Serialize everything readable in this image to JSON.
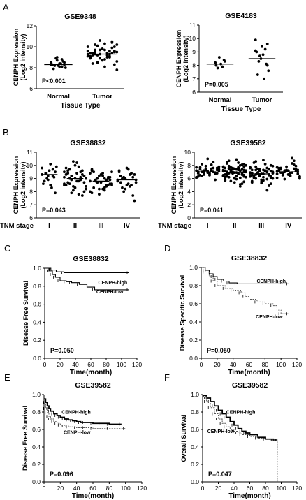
{
  "chart_data": [
    {
      "letter": "A",
      "type": "scatter",
      "title": "GSE9348",
      "ylabel": [
        "CENPH Expression",
        "(Log2 intensity)"
      ],
      "xlabel": "Tissue Type",
      "categories": [
        "Normal",
        "Tumor"
      ],
      "ylim": [
        6,
        12
      ],
      "yticks": [
        6,
        8,
        10,
        12
      ],
      "means": [
        8.3,
        9.3
      ],
      "values": [
        [
          8.3,
          8.5,
          8.1,
          8.4,
          8.7,
          8.2,
          8.3,
          8.0,
          8.6,
          8.4,
          8.2,
          8.9,
          7.9,
          8.5,
          8.3,
          8.8,
          8.1,
          9.0
        ],
        [
          9.3,
          9.5,
          9.1,
          9.7,
          8.9,
          10.2,
          9.4,
          8.6,
          10.4,
          9.0,
          9.8,
          9.2,
          8.4,
          10.0,
          9.6,
          9.3,
          8.8,
          10.6,
          9.5,
          9.1,
          7.8,
          9.9,
          9.4,
          8.7,
          10.1,
          9.2,
          9.6,
          8.3,
          9.0,
          10.3,
          9.7,
          9.3,
          8.9,
          9.5,
          10.5,
          9.2,
          9.8,
          8.5,
          9.4,
          9.1,
          10.0,
          9.6,
          8.1,
          9.3,
          9.7,
          9.0,
          10.2,
          9.4
        ]
      ],
      "annotation": "P<0.001"
    },
    {
      "letter": "",
      "type": "scatter",
      "title": "GSE4183",
      "ylabel": [
        "CENPH Expression",
        "(Log2 intensity)"
      ],
      "xlabel": "Tissue Type",
      "categories": [
        "Normal",
        "Tumor"
      ],
      "ylim": [
        6,
        11
      ],
      "yticks": [
        6,
        7,
        8,
        9,
        10,
        11
      ],
      "means": [
        8.1,
        8.5
      ],
      "values": [
        [
          8.2,
          8.4,
          7.9,
          8.1,
          8.6,
          7.8,
          8.0,
          8.3
        ],
        [
          9.9,
          9.6,
          9.2,
          8.8,
          8.5,
          8.3,
          9.0,
          7.6,
          8.1,
          7.0,
          9.4,
          8.7,
          7.3,
          9.1,
          8.0
        ]
      ],
      "annotation": "P=0.005"
    },
    {
      "letter": "B",
      "type": "scatter",
      "title": "GSE38832",
      "ylabel": [
        "CENPH Expression",
        "(Log2 intensity)"
      ],
      "xlabel": "TNM stage",
      "categories": [
        "I",
        "II",
        "III",
        "IV"
      ],
      "ylim": [
        6,
        11
      ],
      "yticks": [
        6,
        7,
        8,
        9,
        10,
        11
      ],
      "means": [
        9.3,
        9.0,
        8.8,
        8.9
      ],
      "values": [
        [
          9.8,
          9.5,
          9.2,
          10.1,
          8.9,
          9.4,
          8.6,
          9.9,
          9.1,
          8.3,
          9.6,
          9.0,
          8.8,
          9.3,
          7.9,
          9.7,
          8.5,
          9.2
        ],
        [
          9.1,
          8.7,
          9.5,
          10.2,
          8.4,
          9.0,
          9.8,
          8.2,
          9.3,
          8.8,
          10.0,
          7.9,
          9.6,
          8.6,
          9.2,
          8.9,
          9.4,
          8.1,
          9.7,
          8.5,
          9.0,
          7.7,
          9.9,
          8.3,
          9.2,
          8.7,
          9.5,
          8.0,
          9.1,
          8.8,
          10.3,
          8.6,
          9.3,
          8.4,
          9.6,
          7.8,
          9.0,
          8.9,
          9.4,
          8.5
        ],
        [
          8.8,
          9.1,
          8.5,
          9.4,
          8.2,
          8.9,
          9.7,
          8.6,
          9.0,
          8.3,
          9.3,
          8.7,
          9.5,
          8.0,
          8.9,
          8.4,
          9.2,
          7.8,
          8.8,
          9.6,
          8.5,
          9.1,
          8.1,
          8.7,
          9.0,
          8.3,
          9.4,
          8.6,
          8.9,
          8.2,
          9.2,
          8.8,
          7.9,
          9.5,
          8.5,
          9.0
        ],
        [
          8.9,
          9.3,
          8.5,
          9.7,
          8.2,
          9.0,
          9.5,
          8.7,
          9.1,
          8.4,
          9.8,
          8.0,
          9.2,
          8.8,
          7.3,
          9.4,
          8.6,
          9.0,
          8.3,
          9.6,
          8.9,
          7.7,
          9.3,
          8.5,
          9.1,
          8.7
        ]
      ],
      "annotation": "P=0.043"
    },
    {
      "letter": "",
      "type": "scatter",
      "title": "GSE39582",
      "ylabel": [
        "CENPH Expression",
        "(Log2 intensity)"
      ],
      "xlabel": "TNM stage",
      "categories": [
        "I",
        "II",
        "III",
        "IV"
      ],
      "ylim": [
        0,
        10
      ],
      "yticks": [
        0,
        2,
        4,
        6,
        8,
        10
      ],
      "means": [
        7.0,
        6.9,
        6.7,
        7.0
      ],
      "values": [
        [
          7.2,
          6.8,
          7.6,
          6.5,
          7.9,
          7.0,
          6.3,
          7.4,
          6.9,
          8.1,
          7.1,
          6.6,
          7.7,
          6.2,
          7.3,
          8.5,
          6.8,
          7.5,
          6.4,
          7.0,
          7.8,
          6.7,
          7.2,
          9.0,
          6.9,
          7.4,
          6.1,
          7.6,
          7.0,
          6.6,
          7.3,
          8.2,
          6.8,
          7.1,
          5.8,
          7.5,
          6.9,
          7.2,
          6.5,
          7.7
        ],
        [
          7.3,
          6.5,
          8.0,
          5.9,
          7.0,
          6.8,
          7.6,
          6.2,
          7.4,
          8.4,
          6.0,
          7.1,
          6.7,
          7.8,
          5.5,
          7.2,
          6.4,
          7.5,
          8.7,
          6.6,
          7.0,
          5.2,
          7.3,
          6.9,
          7.7,
          6.3,
          7.1,
          8.2,
          6.1,
          7.4,
          6.8,
          7.9,
          5.7,
          7.2,
          6.6,
          7.5,
          6.0,
          7.0,
          8.5,
          6.4,
          7.3,
          4.8,
          6.9,
          7.6,
          6.2,
          7.1,
          8.0,
          6.7,
          7.4,
          5.4,
          7.0,
          6.5,
          7.8,
          6.3,
          7.2,
          8.9,
          6.8,
          7.5,
          5.9,
          7.1,
          6.6,
          7.7,
          6.1,
          7.3,
          8.3,
          6.4,
          7.0,
          5.1,
          7.4,
          6.9,
          7.6,
          6.2,
          7.2,
          8.1,
          6.7,
          7.5,
          5.6,
          7.0,
          6.5,
          7.8
        ],
        [
          6.9,
          6.3,
          7.6,
          5.7,
          7.1,
          6.6,
          7.3,
          6.0,
          7.4,
          8.2,
          5.5,
          6.8,
          6.4,
          7.7,
          5.2,
          7.0,
          6.2,
          7.2,
          8.6,
          6.5,
          6.9,
          4.9,
          7.1,
          6.7,
          7.5,
          6.1,
          6.8,
          8.0,
          5.9,
          7.3,
          6.4,
          7.8,
          5.4,
          7.0,
          6.6,
          7.2,
          5.8,
          6.9,
          8.4,
          6.3,
          7.1,
          4.2,
          6.7,
          7.4,
          6.0,
          6.8,
          7.9,
          6.5,
          7.2,
          5.3,
          6.9,
          6.2,
          7.6,
          6.1,
          7.0,
          8.8,
          6.6,
          7.3,
          5.6,
          6.8
        ],
        [
          7.1,
          6.7,
          7.5,
          6.4,
          7.8,
          6.9,
          7.2,
          6.2,
          7.4,
          8.3,
          6.6,
          7.0,
          7.6,
          6.1,
          7.3,
          8.7,
          6.8,
          7.1,
          6.5,
          7.5,
          6.3,
          7.9,
          6.9,
          7.2,
          5.9,
          7.4,
          6.7,
          7.0,
          8.1,
          6.4,
          7.3,
          6.8,
          7.6,
          6.0,
          7.1,
          9.1,
          6.6,
          7.2,
          6.9,
          7.7
        ]
      ],
      "annotation": "P=0.041"
    },
    {
      "letter": "C",
      "type": "line",
      "title": "GSE38832",
      "ylabel": "Disease Free Survival",
      "xlabel": "Time(month)",
      "xlim": [
        0,
        120
      ],
      "ylim": [
        0,
        1.0
      ],
      "xticks": [
        0,
        20,
        40,
        60,
        80,
        100,
        120
      ],
      "yticks": [
        0.0,
        0.2,
        0.4,
        0.6,
        0.8,
        1.0
      ],
      "series": [
        {
          "name": "CENPH-high",
          "style": "solid",
          "x": [
            0,
            8,
            15,
            25,
            110
          ],
          "y": [
            1.0,
            0.98,
            0.96,
            0.95,
            0.95
          ]
        },
        {
          "name": "CENPH-low",
          "style": "solid",
          "x": [
            0,
            6,
            10,
            14,
            20,
            28,
            35,
            45,
            55,
            65,
            110
          ],
          "y": [
            1.0,
            0.97,
            0.93,
            0.9,
            0.86,
            0.85,
            0.84,
            0.82,
            0.79,
            0.76,
            0.76
          ]
        }
      ],
      "annotation": "P=0.050"
    },
    {
      "letter": "D",
      "type": "line",
      "title": "GSE38832",
      "ylabel": "Disease Specific Survival",
      "xlabel": "Time(month)",
      "xlim": [
        0,
        120
      ],
      "ylim": [
        0,
        1.0
      ],
      "xticks": [
        0,
        20,
        40,
        60,
        80,
        100,
        120
      ],
      "yticks": [
        0.0,
        0.2,
        0.4,
        0.6,
        0.8,
        1.0
      ],
      "series": [
        {
          "name": "CENPH-high",
          "style": "solid",
          "x": [
            0,
            5,
            10,
            15,
            20,
            28,
            35,
            45,
            110
          ],
          "y": [
            1.0,
            0.97,
            0.93,
            0.9,
            0.87,
            0.85,
            0.83,
            0.82,
            0.82
          ]
        },
        {
          "name": "CENPH-low",
          "style": "dashed",
          "x": [
            0,
            5,
            10,
            15,
            20,
            30,
            40,
            50,
            55,
            60,
            70,
            80,
            90,
            95,
            100,
            110
          ],
          "y": [
            1.0,
            0.95,
            0.9,
            0.85,
            0.8,
            0.77,
            0.75,
            0.72,
            0.68,
            0.65,
            0.62,
            0.6,
            0.58,
            0.53,
            0.49,
            0.49
          ]
        }
      ],
      "annotation": "P=0.050"
    },
    {
      "letter": "E",
      "type": "line",
      "title": "GSE39582",
      "ylabel": "Disease Free Survival",
      "xlabel": "Time(month)",
      "xlim": [
        0,
        120
      ],
      "ylim": [
        0,
        1.0
      ],
      "xticks": [
        0,
        20,
        40,
        60,
        80,
        100,
        120
      ],
      "yticks": [
        0.0,
        0.2,
        0.4,
        0.6,
        0.8,
        1.0
      ],
      "series": [
        {
          "name": "CENPH-high",
          "style": "solid",
          "x": [
            0,
            2,
            4,
            6,
            8,
            12,
            16,
            20,
            25,
            30,
            35,
            40,
            45,
            50,
            60,
            70,
            80,
            95
          ],
          "y": [
            0.95,
            0.91,
            0.87,
            0.84,
            0.81,
            0.78,
            0.76,
            0.74,
            0.72,
            0.71,
            0.7,
            0.69,
            0.68,
            0.68,
            0.67,
            0.67,
            0.66,
            0.66
          ]
        },
        {
          "name": "CENPH-low",
          "style": "dashed",
          "x": [
            0,
            2,
            4,
            6,
            8,
            12,
            16,
            20,
            25,
            30,
            40,
            50,
            60,
            80,
            100
          ],
          "y": [
            0.9,
            0.84,
            0.79,
            0.75,
            0.72,
            0.69,
            0.67,
            0.65,
            0.64,
            0.63,
            0.62,
            0.62,
            0.61,
            0.61,
            0.61
          ]
        }
      ],
      "annotation": "P=0.096"
    },
    {
      "letter": "F",
      "type": "line",
      "title": "GSE39582",
      "ylabel": "Overall Survival",
      "xlabel": "Time(month)",
      "xlim": [
        0,
        120
      ],
      "ylim": [
        0,
        1.0
      ],
      "xticks": [
        0,
        20,
        40,
        60,
        80,
        100,
        120
      ],
      "yticks": [
        0.0,
        0.2,
        0.4,
        0.6,
        0.8,
        1.0
      ],
      "series": [
        {
          "name": "CENPH-high",
          "style": "solid",
          "x": [
            0,
            5,
            10,
            15,
            20,
            25,
            30,
            35,
            40,
            45,
            50,
            55,
            60,
            70,
            80,
            90,
            95
          ],
          "y": [
            0.99,
            0.96,
            0.92,
            0.87,
            0.82,
            0.78,
            0.74,
            0.69,
            0.65,
            0.61,
            0.58,
            0.56,
            0.54,
            0.51,
            0.49,
            0.48,
            0.48
          ]
        },
        {
          "name": "CENPH-low",
          "style": "dashed",
          "x": [
            0,
            5,
            10,
            15,
            20,
            25,
            30,
            35,
            40,
            45,
            50,
            60,
            70,
            80,
            90,
            95,
            95
          ],
          "y": [
            0.98,
            0.92,
            0.85,
            0.78,
            0.72,
            0.67,
            0.63,
            0.6,
            0.58,
            0.56,
            0.54,
            0.52,
            0.5,
            0.49,
            0.48,
            0.48,
            0.0
          ]
        }
      ],
      "annotation": "P=0.047"
    }
  ]
}
